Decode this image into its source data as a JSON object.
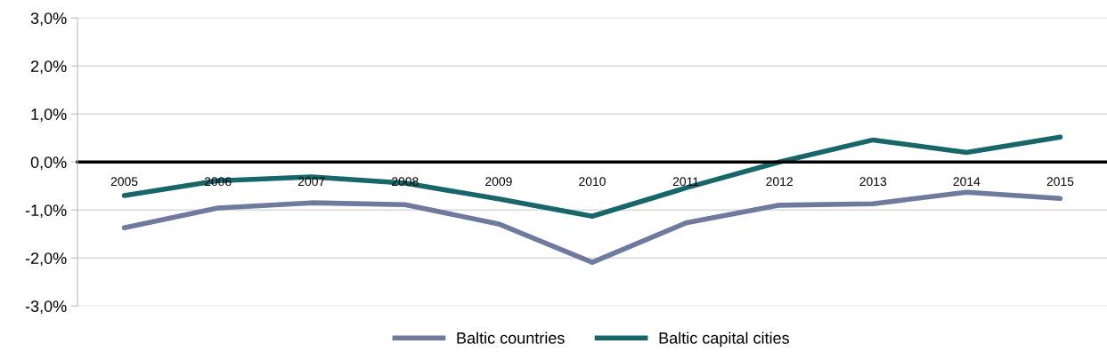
{
  "chart_data": {
    "type": "line",
    "categories": [
      "2005",
      "2006",
      "2007",
      "2008",
      "2009",
      "2010",
      "2011",
      "2012",
      "2013",
      "2014",
      "2015"
    ],
    "series": [
      {
        "name": "Baltic countries",
        "color": "#6e7a9e",
        "values": [
          -1.37,
          -0.96,
          -0.85,
          -0.89,
          -1.29,
          -2.09,
          -1.27,
          -0.9,
          -0.87,
          -0.63,
          -0.76
        ]
      },
      {
        "name": "Baltic capital cities",
        "color": "#16666a",
        "values": [
          -0.7,
          -0.39,
          -0.31,
          -0.44,
          -0.77,
          -1.13,
          -0.54,
          0.0,
          0.46,
          0.2,
          0.52
        ]
      }
    ],
    "ylim": [
      -3,
      3
    ],
    "yticks": [
      {
        "value": -3,
        "label": "-3,0%"
      },
      {
        "value": -2,
        "label": "-2,0%"
      },
      {
        "value": -1,
        "label": "-1,0%"
      },
      {
        "value": 0,
        "label": "0,0%"
      },
      {
        "value": 1,
        "label": "1,0%"
      },
      {
        "value": 2,
        "label": "2,0%"
      },
      {
        "value": 3,
        "label": "3,0%"
      }
    ],
    "grid": "y",
    "legend": "bottom",
    "marker": "none",
    "line_style": "solid"
  }
}
